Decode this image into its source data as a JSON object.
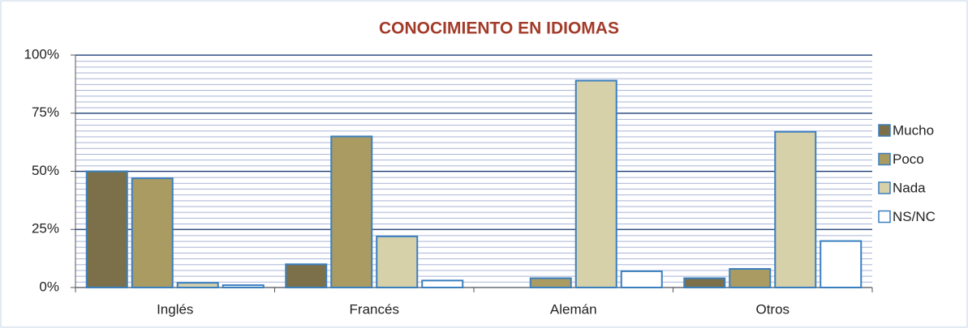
{
  "chart_data": {
    "type": "bar",
    "title": "CONOCIMIENTO EN IDIOMAS",
    "categories": [
      "Inglés",
      "Francés",
      "Alemán",
      "Otros"
    ],
    "series": [
      {
        "name": "Mucho",
        "color": "#7b7049",
        "values": [
          50,
          10,
          0,
          4
        ]
      },
      {
        "name": "Poco",
        "color": "#a99b62",
        "values": [
          47,
          65,
          4,
          8
        ]
      },
      {
        "name": "Nada",
        "color": "#d7d1aa",
        "values": [
          2,
          22,
          89,
          67
        ]
      },
      {
        "name": "NS/NC",
        "color": "#ffffff",
        "values": [
          1,
          3,
          7,
          20
        ]
      }
    ],
    "ylim": [
      0,
      100
    ],
    "yticks": [
      {
        "value": 0,
        "label": "0%"
      },
      {
        "value": 25,
        "label": "25%"
      },
      {
        "value": 50,
        "label": "50%"
      },
      {
        "value": 75,
        "label": "75%"
      },
      {
        "value": 100,
        "label": "100%"
      }
    ],
    "grid": true,
    "legend": "right"
  }
}
